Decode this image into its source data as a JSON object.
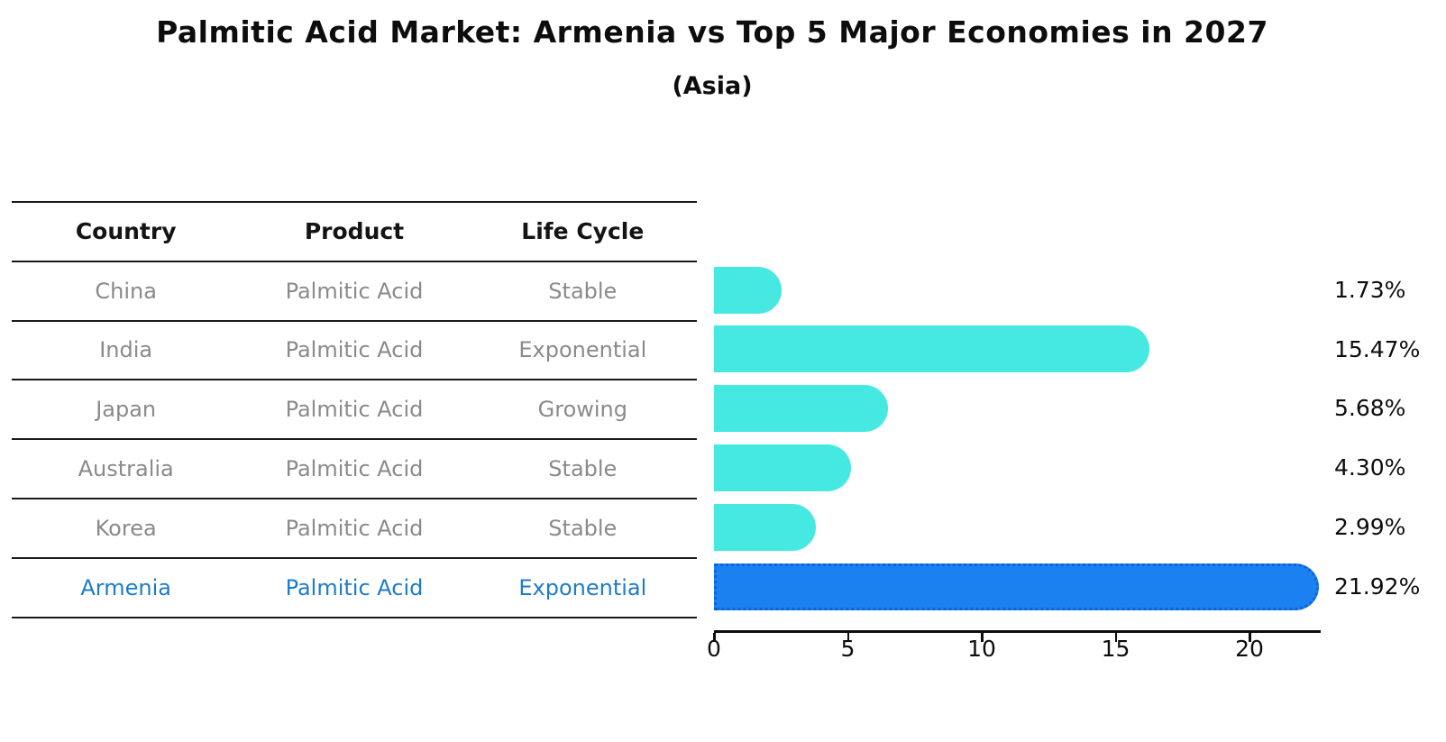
{
  "title": "Palmitic Acid Market: Armenia vs Top 5 Major Economies in 2027",
  "subtitle": "(Asia)",
  "table": {
    "headers": [
      "Country",
      "Product",
      "Life Cycle"
    ],
    "rows": [
      {
        "country": "China",
        "product": "Palmitic Acid",
        "life_cycle": "Stable",
        "highlight": false
      },
      {
        "country": "India",
        "product": "Palmitic Acid",
        "life_cycle": "Exponential",
        "highlight": false
      },
      {
        "country": "Japan",
        "product": "Palmitic Acid",
        "life_cycle": "Growing",
        "highlight": false
      },
      {
        "country": "Australia",
        "product": "Palmitic Acid",
        "life_cycle": "Stable",
        "highlight": false
      },
      {
        "country": "Korea",
        "product": "Palmitic Acid",
        "life_cycle": "Stable",
        "highlight": false
      },
      {
        "country": "Armenia",
        "product": "Palmitic Acid",
        "life_cycle": "Exponential",
        "highlight": true
      }
    ]
  },
  "chart_data": {
    "type": "bar",
    "orientation": "horizontal",
    "title": "Palmitic Acid Market: Armenia vs Top 5 Major Economies in 2027",
    "subtitle": "(Asia)",
    "categories": [
      "China",
      "India",
      "Japan",
      "Australia",
      "Korea",
      "Armenia"
    ],
    "values": [
      1.73,
      15.47,
      5.68,
      4.3,
      2.99,
      21.92
    ],
    "value_labels": [
      "1.73%",
      "15.47%",
      "5.68%",
      "4.30%",
      "2.99%",
      "21.92%"
    ],
    "xticks": [
      0,
      5,
      10,
      15,
      20
    ],
    "xlim": [
      0,
      22.7
    ],
    "xlabel": "",
    "ylabel": "",
    "grid": false,
    "legend": false,
    "bar_color": "#46e8e2",
    "highlight_index": 5,
    "highlight_bar_color": "#1b80f0",
    "highlight_border_color": "#0f63d6",
    "highlight_text_color": "#1e7bc9"
  }
}
